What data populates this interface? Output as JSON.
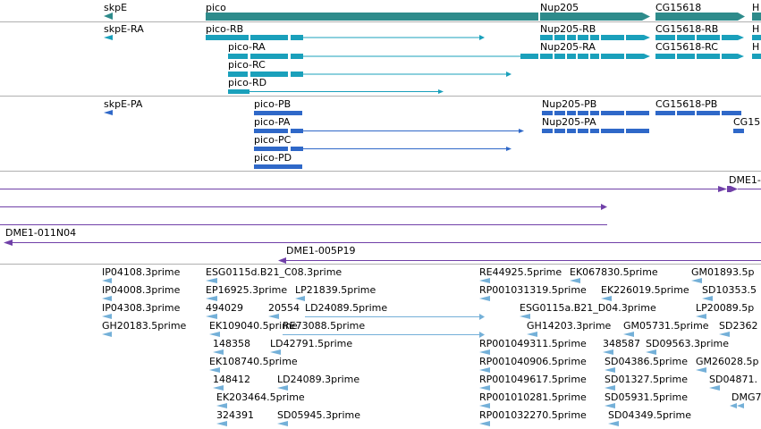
{
  "colors": {
    "gene": "#2e8b8b",
    "mrna": "#1aa0bb",
    "protein": "#2f68c8",
    "clone": "#7040a8",
    "est": "#74b0d8",
    "divider": "#b0b0b0"
  },
  "tracks": {
    "genes": [
      {
        "label": "skpE"
      },
      {
        "label": "pico"
      },
      {
        "label": "Nup205"
      },
      {
        "label": "CG15618"
      },
      {
        "label": "H"
      }
    ],
    "transcripts": [
      {
        "label": "skpE-RA"
      },
      {
        "label": "pico-RB"
      },
      {
        "label": "pico-RA"
      },
      {
        "label": "pico-RC"
      },
      {
        "label": "pico-RD"
      },
      {
        "label": "Nup205-RB"
      },
      {
        "label": "Nup205-RA"
      },
      {
        "label": "CG15618-RB"
      },
      {
        "label": "CG15618-RC"
      },
      {
        "label": "H"
      },
      {
        "label": "H"
      }
    ],
    "proteins": [
      {
        "label": "skpE-PA"
      },
      {
        "label": "pico-PB"
      },
      {
        "label": "pico-PA"
      },
      {
        "label": "pico-PC"
      },
      {
        "label": "pico-PD"
      },
      {
        "label": "Nup205-PB"
      },
      {
        "label": "Nup205-PA"
      },
      {
        "label": "CG15618-PB"
      },
      {
        "label": "CG15"
      }
    ],
    "clones": [
      {
        "label": "DME1-"
      },
      {
        "label": "DME1-011N04"
      },
      {
        "label": "DME1-005P19"
      }
    ],
    "ests": [
      {
        "label": "IP04108.3prime"
      },
      {
        "label": "IP04008.3prime"
      },
      {
        "label": "IP04308.3prime"
      },
      {
        "label": "GH20183.5prime"
      },
      {
        "label": "ESG0115d.B21_C08.3prime"
      },
      {
        "label": "EP16925.3prime"
      },
      {
        "label": "LP21839.5prime"
      },
      {
        "label": "494029"
      },
      {
        "label": "20554"
      },
      {
        "label": "LD24089.5prime"
      },
      {
        "label": "EK109040.5prime"
      },
      {
        "label": "RE73088.5prime"
      },
      {
        "label": "148358"
      },
      {
        "label": "LD42791.5prime"
      },
      {
        "label": "EK108740.5prime"
      },
      {
        "label": "148412"
      },
      {
        "label": "LD24089.3prime"
      },
      {
        "label": "EK203464.5prime"
      },
      {
        "label": "324391"
      },
      {
        "label": "SD05945.3prime"
      },
      {
        "label": "RE44925.5prime"
      },
      {
        "label": "EK067830.5prime"
      },
      {
        "label": "GM01893.5p"
      },
      {
        "label": "RP001031319.5prime"
      },
      {
        "label": "EK226019.5prime"
      },
      {
        "label": "SD10353.5"
      },
      {
        "label": "ESG0115a.B21_D04.3prime"
      },
      {
        "label": "LP20089.5p"
      },
      {
        "label": "GH14203.3prime"
      },
      {
        "label": "GM05731.5prime"
      },
      {
        "label": "SD2362"
      },
      {
        "label": "RP001049311.5prime"
      },
      {
        "label": "348587"
      },
      {
        "label": "SD09563.3prime"
      },
      {
        "label": "RP001040906.5prime"
      },
      {
        "label": "SD04386.5prime"
      },
      {
        "label": "GM26028.5p"
      },
      {
        "label": "RP001049617.5prime"
      },
      {
        "label": "SD01327.5prime"
      },
      {
        "label": "SD04871."
      },
      {
        "label": "RP001010281.5prime"
      },
      {
        "label": "SD05931.5prime"
      },
      {
        "label": "DMG7"
      },
      {
        "label": "RP001032270.5prime"
      },
      {
        "label": "SD04349.5prime"
      }
    ]
  }
}
